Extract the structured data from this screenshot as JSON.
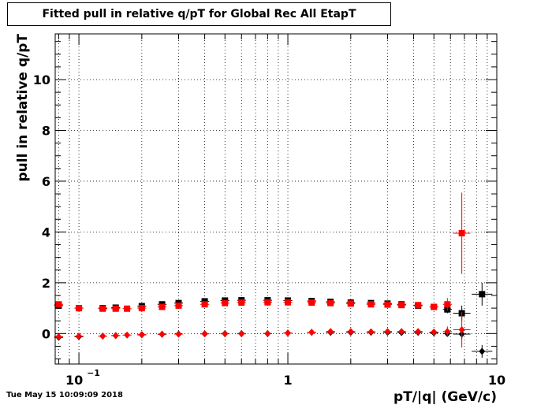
{
  "title": "Fitted pull in relative q/pT for Global Rec All EtapT",
  "timestamp": "Tue May 15 10:09:09 2018",
  "chart_data": {
    "type": "scatter",
    "title": "Fitted pull in relative q/pT for Global Rec All EtapT",
    "xlabel": "pT/|q| (GeV/c)",
    "ylabel": "pull in relative q/pT",
    "x_scale": "log",
    "xlim": [
      0.077,
      10
    ],
    "ylim": [
      -1.2,
      11.8
    ],
    "grid": true,
    "x_tick_labels": [
      {
        "value": 0.1,
        "label": "10",
        "exponent": "−1"
      },
      {
        "value": 1,
        "label": "1"
      },
      {
        "value": 10,
        "label": "10"
      }
    ],
    "y_ticks": [
      0,
      2,
      4,
      6,
      8,
      10
    ],
    "y_tick_labels": [
      "0",
      "2",
      "4",
      "6",
      "8",
      "10"
    ],
    "series": [
      {
        "color": "#000000",
        "marker": "square",
        "x": [
          0.08,
          0.1,
          0.13,
          0.15,
          0.2,
          0.25,
          0.3,
          0.4,
          0.5,
          0.6,
          0.8,
          1.0,
          1.3,
          1.6,
          2.0,
          2.5,
          3.0,
          3.5,
          4.2,
          5.0,
          5.8,
          6.8,
          8.5
        ],
        "y": [
          1.1,
          1.0,
          1.0,
          1.02,
          1.08,
          1.15,
          1.2,
          1.27,
          1.3,
          1.31,
          1.31,
          1.3,
          1.28,
          1.25,
          1.22,
          1.2,
          1.18,
          1.15,
          1.1,
          1.05,
          0.95,
          0.8,
          1.55
        ],
        "yerr": [
          0.05,
          0.03,
          0.03,
          0.03,
          0.03,
          0.03,
          0.03,
          0.03,
          0.03,
          0.03,
          0.03,
          0.03,
          0.03,
          0.03,
          0.03,
          0.03,
          0.03,
          0.04,
          0.05,
          0.08,
          0.15,
          0.3,
          0.45
        ],
        "xerr_factor": [
          1.05,
          1.05,
          1.05,
          1.05,
          1.05,
          1.05,
          1.05,
          1.05,
          1.05,
          1.05,
          1.05,
          1.05,
          1.05,
          1.05,
          1.05,
          1.05,
          1.05,
          1.05,
          1.05,
          1.05,
          1.05,
          1.1,
          1.12
        ]
      },
      {
        "color": "#000000",
        "marker": "diamond",
        "x": [
          0.08,
          0.1,
          0.13,
          0.15,
          0.2,
          0.25,
          0.3,
          0.4,
          0.5,
          0.6,
          0.8,
          1.0,
          1.3,
          1.6,
          2.0,
          2.5,
          3.0,
          3.5,
          4.2,
          5.0,
          5.8,
          6.8,
          8.5
        ],
        "y": [
          -0.15,
          -0.12,
          -0.1,
          -0.08,
          -0.05,
          -0.03,
          -0.02,
          -0.01,
          0.0,
          0.0,
          0.0,
          0.02,
          0.05,
          0.05,
          0.05,
          0.05,
          0.05,
          0.04,
          0.05,
          0.03,
          0.0,
          -0.02,
          -0.7
        ],
        "yerr": [
          0.05,
          0.03,
          0.03,
          0.03,
          0.03,
          0.03,
          0.03,
          0.03,
          0.03,
          0.03,
          0.03,
          0.03,
          0.03,
          0.03,
          0.03,
          0.03,
          0.03,
          0.04,
          0.05,
          0.08,
          0.12,
          0.2,
          0.25
        ],
        "xerr_factor": [
          1.05,
          1.05,
          1.05,
          1.05,
          1.05,
          1.05,
          1.05,
          1.05,
          1.05,
          1.05,
          1.05,
          1.05,
          1.05,
          1.05,
          1.05,
          1.05,
          1.05,
          1.05,
          1.05,
          1.05,
          1.05,
          1.1,
          1.12
        ]
      },
      {
        "color": "#ff0000",
        "marker": "square",
        "x": [
          0.08,
          0.1,
          0.13,
          0.15,
          0.17,
          0.2,
          0.25,
          0.3,
          0.4,
          0.5,
          0.6,
          0.8,
          1.0,
          1.3,
          1.6,
          2.0,
          2.5,
          3.0,
          3.5,
          4.2,
          5.0,
          5.8,
          6.8
        ],
        "y": [
          1.15,
          1.0,
          0.98,
          0.98,
          0.98,
          1.0,
          1.05,
          1.1,
          1.15,
          1.2,
          1.22,
          1.23,
          1.23,
          1.22,
          1.2,
          1.18,
          1.15,
          1.14,
          1.12,
          1.12,
          1.05,
          1.15,
          3.95
        ],
        "yerr": [
          0.05,
          0.03,
          0.03,
          0.03,
          0.03,
          0.03,
          0.03,
          0.03,
          0.03,
          0.03,
          0.03,
          0.03,
          0.03,
          0.03,
          0.03,
          0.03,
          0.03,
          0.04,
          0.05,
          0.06,
          0.1,
          0.25,
          1.6
        ],
        "xerr_factor": [
          1.05,
          1.05,
          1.05,
          1.05,
          1.05,
          1.05,
          1.05,
          1.05,
          1.05,
          1.05,
          1.05,
          1.05,
          1.05,
          1.05,
          1.05,
          1.05,
          1.05,
          1.05,
          1.05,
          1.05,
          1.05,
          1.05,
          1.1
        ]
      },
      {
        "color": "#ff0000",
        "marker": "diamond",
        "x": [
          0.08,
          0.1,
          0.13,
          0.15,
          0.17,
          0.2,
          0.25,
          0.3,
          0.4,
          0.5,
          0.6,
          0.8,
          1.0,
          1.3,
          1.6,
          2.0,
          2.5,
          3.0,
          3.5,
          4.2,
          5.0,
          5.8,
          6.8
        ],
        "y": [
          -0.12,
          -0.1,
          -0.1,
          -0.08,
          -0.06,
          -0.04,
          -0.02,
          -0.02,
          -0.01,
          -0.01,
          -0.01,
          0.0,
          0.02,
          0.05,
          0.08,
          0.08,
          0.07,
          0.08,
          0.08,
          0.08,
          0.06,
          0.08,
          0.15
        ],
        "yerr": [
          0.05,
          0.03,
          0.03,
          0.03,
          0.03,
          0.03,
          0.03,
          0.03,
          0.03,
          0.03,
          0.03,
          0.03,
          0.03,
          0.03,
          0.03,
          0.03,
          0.03,
          0.04,
          0.05,
          0.06,
          0.08,
          0.2,
          0.7
        ],
        "xerr_factor": [
          1.05,
          1.05,
          1.05,
          1.05,
          1.05,
          1.05,
          1.05,
          1.05,
          1.05,
          1.05,
          1.05,
          1.05,
          1.05,
          1.05,
          1.05,
          1.05,
          1.05,
          1.05,
          1.05,
          1.05,
          1.05,
          1.05,
          1.1
        ]
      }
    ]
  }
}
